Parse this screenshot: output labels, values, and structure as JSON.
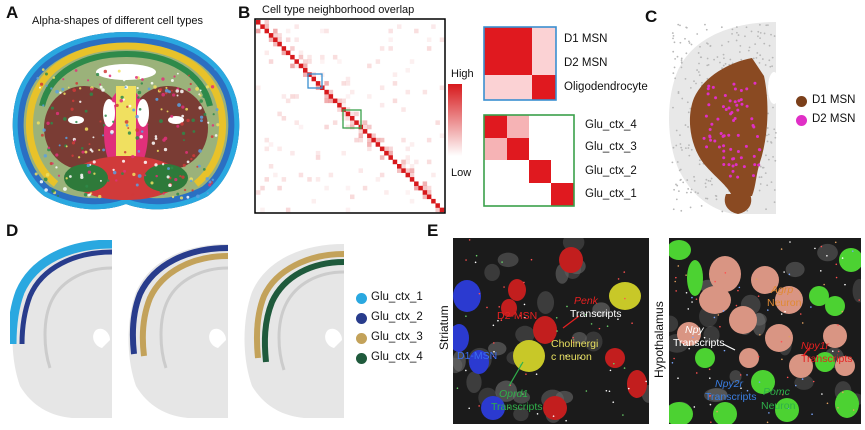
{
  "panels": {
    "A": {
      "label": "A",
      "title": "Alpha-shapes of different cell types"
    },
    "B": {
      "label": "B",
      "title": "Cell type neighborhood overlap",
      "colorbar": {
        "high": "High",
        "low": "Low"
      },
      "zoom_top": [
        "D1 MSN",
        "D2 MSN",
        "Oligodendrocyte"
      ],
      "zoom_bottom": [
        "Glu_ctx_4",
        "Glu_ctx_3",
        "Glu_ctx_2",
        "Glu_ctx_1"
      ],
      "colors": {
        "matrix": "#d7191c",
        "box_top": "#3a8fd0",
        "box_bottom": "#3aa04a"
      }
    },
    "C": {
      "label": "C",
      "legend": [
        {
          "name": "D1 MSN",
          "color": "#7b3f1a"
        },
        {
          "name": "D2 MSN",
          "color": "#e02fc6"
        }
      ]
    },
    "D": {
      "label": "D",
      "legend": [
        {
          "name": "Glu_ctx_1",
          "color": "#2aa8e0"
        },
        {
          "name": "Glu_ctx_2",
          "color": "#283c8c"
        },
        {
          "name": "Glu_ctx_3",
          "color": "#c3a25a"
        },
        {
          "name": "Glu_ctx_4",
          "color": "#1f5a3c"
        }
      ]
    },
    "E": {
      "label": "E",
      "left_region": "Striatum",
      "right_region": "Hypothalamus",
      "striatum": {
        "penk_gene": "Penk",
        "penk_word": "Transcripts",
        "d2": "D2-MSN",
        "d1": "D1-MSN",
        "choline_1": "Cholinergi",
        "choline_2": "c neuron",
        "oprd1_gene": "Oprd1",
        "oprd1_word": "Transcripts"
      },
      "hypothalamus": {
        "agrp_gene": "Agrp",
        "agrp_word": "Neuron",
        "npy_gene": "Npy",
        "npy_word": "Transcripts",
        "npy1r_gene": "Npy1r",
        "npy1r_word": "Transcripts",
        "npy2r_gene": "Npy2r",
        "npy2r_word": "Transcripts",
        "pomc_gene": "Pomc",
        "pomc_word": "Neuron"
      }
    }
  }
}
